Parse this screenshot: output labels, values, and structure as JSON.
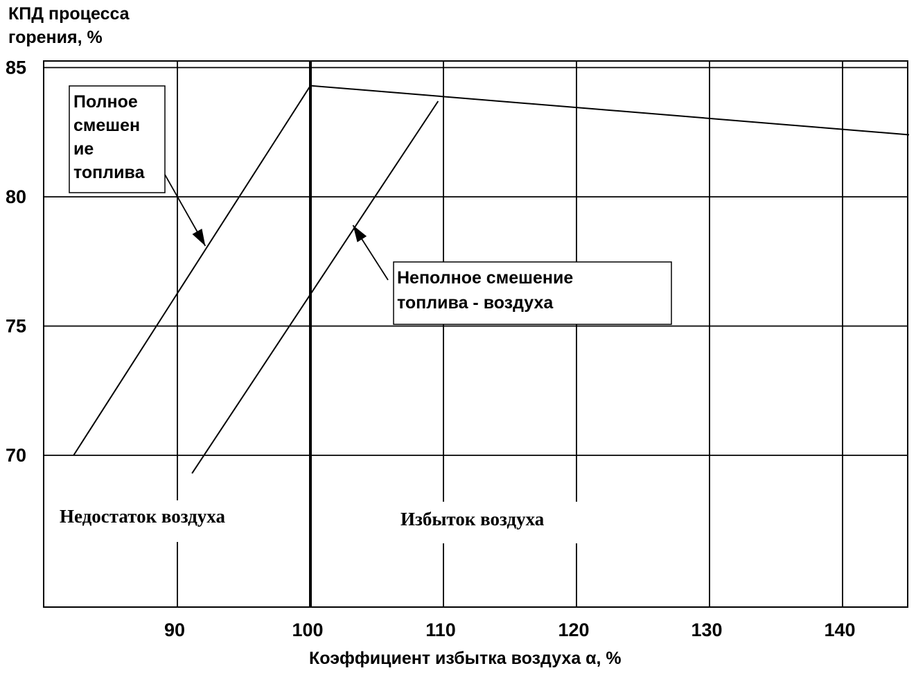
{
  "chart_data": {
    "type": "line",
    "title": "",
    "ylabel": "КПД процесса\nгорения, %",
    "xlabel": "Коэффициент избытка воздуха α,  %",
    "xlim": [
      80,
      145
    ],
    "ylim": [
      65,
      85
    ],
    "x_ticks": [
      90,
      100,
      110,
      120,
      130,
      140
    ],
    "y_ticks": [
      70,
      75,
      80,
      85
    ],
    "grid": true,
    "stoichiometric_x": 100,
    "series": [
      {
        "name": "Полное смешение топлива",
        "x": [
          82.2,
          100,
          145
        ],
        "y": [
          70,
          84.3,
          82.4
        ]
      },
      {
        "name": "Неполное смешение топлива - воздуха",
        "x": [
          91.1,
          109.6
        ],
        "y": [
          69.3,
          83.7
        ]
      }
    ],
    "annotations": [
      {
        "text": "Полное\nсмешен\nие\nтоплива",
        "arrow_to_series": 0,
        "arrow_tip": [
          92.1,
          78.1
        ]
      },
      {
        "text": "Неполное смешение\nтоплива - воздуха",
        "arrow_to_series": 1,
        "arrow_tip": [
          103.2,
          78.9
        ]
      }
    ],
    "region_labels": [
      "Недостаток воздуха",
      "Избыток воздуха"
    ],
    "colors": {
      "line": "#000000",
      "background": "#ffffff"
    }
  }
}
